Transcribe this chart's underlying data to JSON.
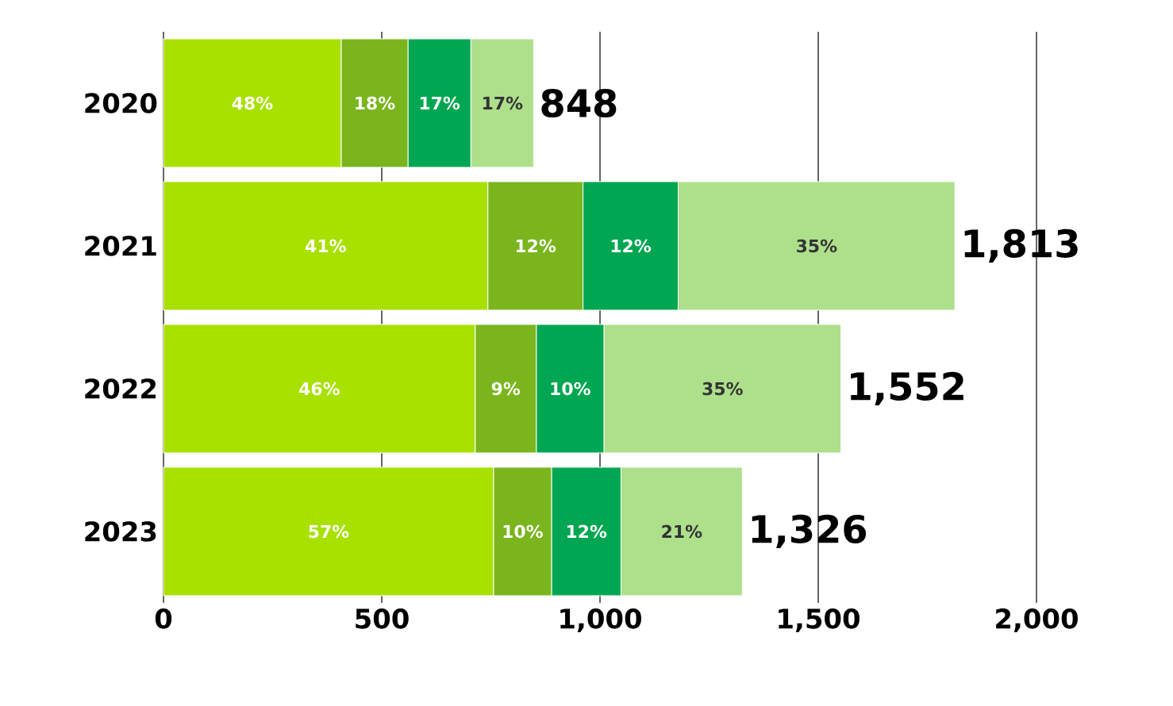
{
  "chart_data": {
    "type": "bar",
    "orientation": "horizontal",
    "stacked": true,
    "categories": [
      "2020",
      "2021",
      "2022",
      "2023"
    ],
    "series": [
      {
        "color": "#a8e000",
        "values": [
          407,
          743,
          714,
          756
        ]
      },
      {
        "color": "#7ab51d",
        "values": [
          153,
          218,
          140,
          133
        ]
      },
      {
        "color": "#00a651",
        "values": [
          144,
          218,
          155,
          159
        ]
      },
      {
        "color": "#aee08c",
        "values": [
          144,
          634,
          543,
          278
        ]
      }
    ],
    "annotations": [
      "48%",
      "18%",
      "17%",
      "17%",
      "41%",
      "12%",
      "12%",
      "35%",
      "46%",
      "9%",
      "10%",
      "35%",
      "57%",
      "10%",
      "12%",
      "21%"
    ],
    "totals": [
      "848",
      "1,813",
      "1,552",
      "1,326"
    ],
    "xlim": [
      0,
      2000
    ],
    "xticks": [
      0,
      500,
      {
        "value": 1000,
        "label": "1,000"
      },
      {
        "value": 1500,
        "label": "1,500"
      },
      {
        "value": 2000,
        "label": "2,000"
      }
    ],
    "grid": "x"
  }
}
